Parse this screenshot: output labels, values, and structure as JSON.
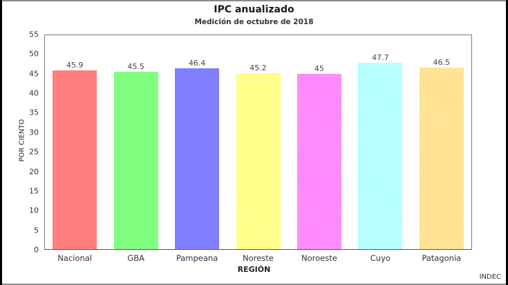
{
  "chart_data": {
    "type": "bar",
    "title": "IPC anualizado",
    "subtitle": "Medición de  octubre de 2018",
    "xlabel": "REGIÓN",
    "ylabel": "POR CIENTO",
    "ylim": [
      0,
      55
    ],
    "yticks": [
      "0",
      "5",
      "10",
      "15",
      "20",
      "25",
      "30",
      "35",
      "40",
      "45",
      "50",
      "55"
    ],
    "categories": [
      "Nacional",
      "GBA",
      "Pampeana",
      "Noreste",
      "Noroeste",
      "Cuyo",
      "Patagonia"
    ],
    "values": [
      45.9,
      45.5,
      46.4,
      45.2,
      45,
      47.7,
      46.5
    ],
    "value_labels": [
      "45.9",
      "45.5",
      "46.4",
      "45.2",
      "45",
      "47.7",
      "46.5"
    ],
    "colors": [
      "#ff7f7f",
      "#80ff80",
      "#8080ff",
      "#ffff80",
      "#ff80ff",
      "#b0ffff",
      "#ffe08a"
    ],
    "grid": false,
    "legend": "none",
    "source": "INDEC"
  }
}
